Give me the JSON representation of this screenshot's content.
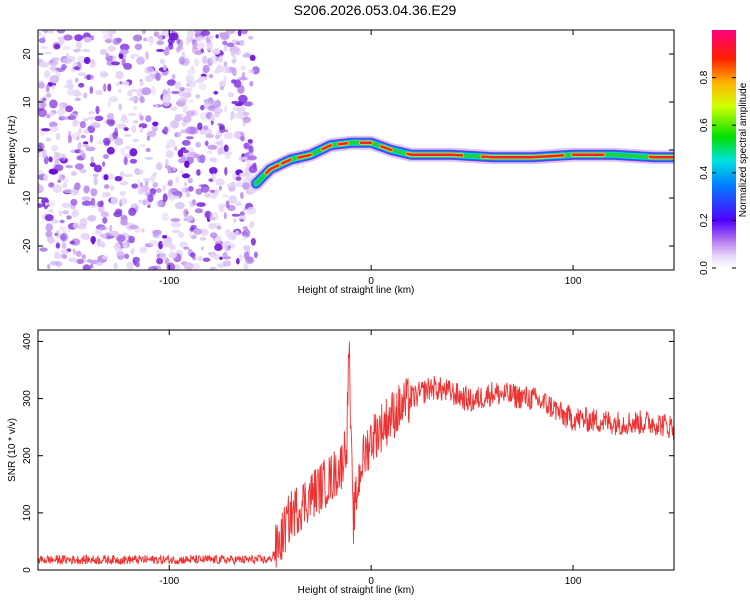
{
  "title": "S206.2026.053.04.36.E29",
  "chart_data": [
    {
      "type": "heatmap",
      "title": "S206.2026.053.04.36.E29",
      "xlabel": "Height of straight line (km)",
      "ylabel": "Frequency (Hz)",
      "xlim": [
        -165,
        150
      ],
      "ylim": [
        -25,
        25
      ],
      "xticks": [
        -100,
        0,
        100
      ],
      "yticks": [
        -20,
        -10,
        0,
        10,
        20
      ],
      "noise_region_x": [
        -165,
        -57
      ],
      "ridge": {
        "description_points_x": [
          -57,
          -50,
          -40,
          -30,
          -20,
          -10,
          0,
          10,
          20,
          40,
          60,
          80,
          100,
          120,
          140,
          150
        ],
        "frequency_hz": [
          -7,
          -4,
          -2,
          -1,
          1,
          1.5,
          1.5,
          0,
          -1,
          -1,
          -1.5,
          -1.5,
          -1,
          -1,
          -1.5,
          -1.5
        ]
      },
      "colorbar": {
        "label": "Normalized spectral amplitude",
        "range": [
          0.0,
          1.0
        ],
        "ticks": [
          0.0,
          0.2,
          0.4,
          0.6,
          0.8
        ],
        "tick_labels": [
          "0.0",
          "0.2",
          "0.4",
          "0.6",
          "0.8"
        ]
      }
    },
    {
      "type": "line",
      "xlabel": "Height of straight line (km)",
      "ylabel": "SNR (10 * v/v)",
      "xlim": [
        -165,
        150
      ],
      "ylim": [
        0,
        420
      ],
      "xticks": [
        -100,
        0,
        100
      ],
      "yticks": [
        0,
        100,
        200,
        300,
        400
      ],
      "color": "#ee3333",
      "series": [
        {
          "name": "SNR",
          "x": [
            -165,
            -140,
            -110,
            -80,
            -60,
            -50,
            -45,
            -40,
            -30,
            -20,
            -15,
            -12,
            -11,
            -10,
            -9,
            -8,
            -5,
            0,
            10,
            20,
            30,
            40,
            50,
            60,
            70,
            80,
            90,
            95,
            100,
            110,
            120,
            130,
            140,
            150
          ],
          "y": [
            18,
            18,
            18,
            18,
            18,
            18,
            50,
            95,
            130,
            160,
            180,
            230,
            400,
            230,
            80,
            110,
            185,
            230,
            270,
            300,
            320,
            310,
            295,
            310,
            305,
            300,
            285,
            270,
            265,
            262,
            258,
            258,
            258,
            250
          ]
        }
      ]
    }
  ]
}
